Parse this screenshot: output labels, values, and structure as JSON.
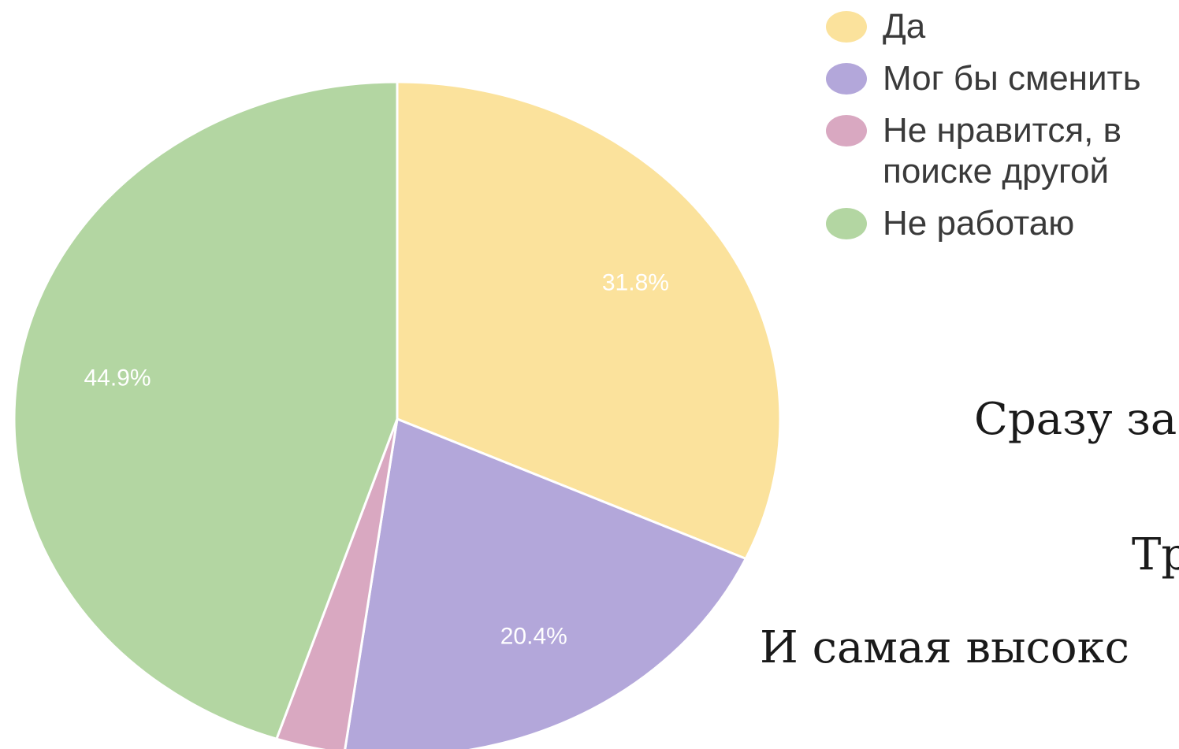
{
  "chart_data": {
    "type": "pie",
    "title": "",
    "start_angle_deg": 0,
    "direction": "clockwise",
    "slices": [
      {
        "label": "Да",
        "value": 31.8,
        "display": "31.8%",
        "color": "#FBE29C"
      },
      {
        "label": "Мог бы сменить",
        "value": 20.4,
        "display": "20.4%",
        "color": "#B3A7DA"
      },
      {
        "label": "Не нравится, в поиске другой",
        "value": 2.9,
        "display": "",
        "color": "#D9A8C1"
      },
      {
        "label": "Не работаю",
        "value": 44.9,
        "display": "44.9%",
        "color": "#B3D6A2"
      }
    ],
    "legend_position": "top-right"
  },
  "side_text": {
    "line1": "Сразу за",
    "line2": "Тр",
    "line3": "И самая высокс"
  }
}
